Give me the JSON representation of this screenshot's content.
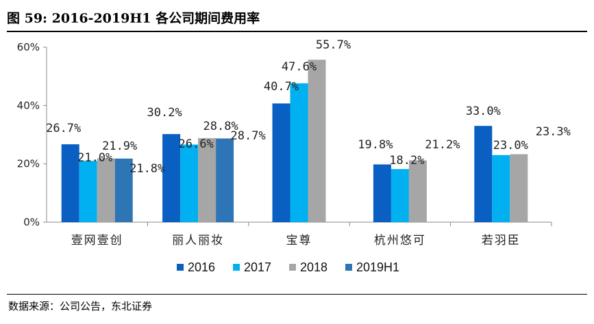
{
  "title": "图 59:  2016-2019H1 各公司期间费用率",
  "source": "数据来源：公司公告，东北证券",
  "chart_data": {
    "type": "bar",
    "categories": [
      "壹网壹创",
      "丽人丽妆",
      "宝尊",
      "杭州悠可",
      "若羽臣"
    ],
    "series": [
      {
        "name": "2016",
        "color": "#0A5FC2",
        "values": [
          26.7,
          30.2,
          40.7,
          19.8,
          33.0
        ],
        "labels": [
          "26.7%",
          "30.2%",
          "40.7%",
          "19.8%",
          "33.0%"
        ]
      },
      {
        "name": "2017",
        "color": "#00B0F0",
        "values": [
          21.0,
          26.6,
          47.6,
          18.2,
          23.0
        ],
        "labels": [
          "21.0%",
          "26.6%",
          "47.6%",
          "18.2%",
          "23.0%"
        ]
      },
      {
        "name": "2018",
        "color": "#A6A6A6",
        "values": [
          21.9,
          28.8,
          55.7,
          21.2,
          23.3
        ],
        "labels": [
          "21.9%",
          "28.8%",
          "55.7%",
          "21.2%",
          "23.3%"
        ]
      },
      {
        "name": "2019H1",
        "color": "#2E75B6",
        "values": [
          21.8,
          28.7,
          null,
          null,
          null
        ],
        "labels": [
          "21.8%",
          "28.7%",
          null,
          null,
          null
        ]
      }
    ],
    "yticks": [
      "0%",
      "20%",
      "40%",
      "60%"
    ],
    "ylim": [
      0,
      60
    ],
    "grid": false,
    "legend": "bottom"
  }
}
